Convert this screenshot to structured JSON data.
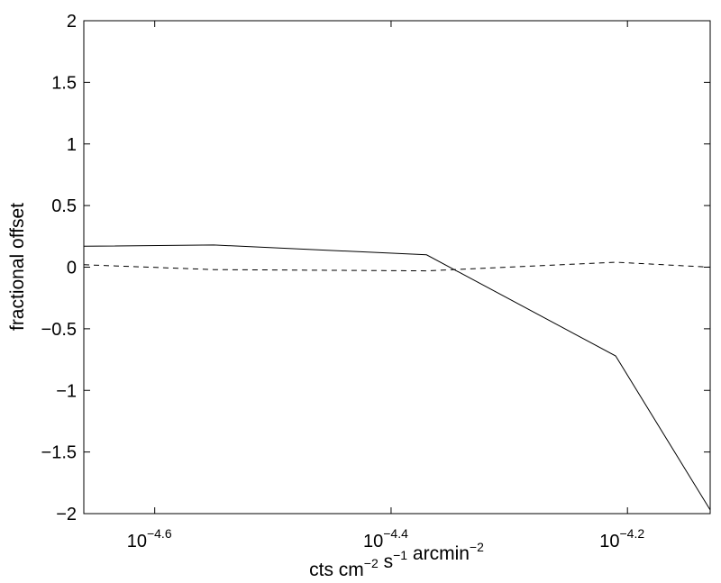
{
  "chart_data": {
    "type": "line",
    "title": "",
    "xlabel": {
      "parts": [
        {
          "text": "cts cm",
          "sup": "−2"
        },
        {
          "text": " s",
          "sup": "−1"
        },
        {
          "text": " arcmin",
          "sup": "−2"
        }
      ]
    },
    "ylabel": "fractional offset",
    "x_scale": "log10",
    "xlim_log10": [
      -4.66,
      -4.13
    ],
    "ylim": [
      -2,
      2
    ],
    "x_ticks": [
      {
        "log10": -4.6,
        "base": "10",
        "exp": "−4.6"
      },
      {
        "log10": -4.4,
        "base": "10",
        "exp": "−4.4"
      },
      {
        "log10": -4.2,
        "base": "10",
        "exp": "−4.2"
      }
    ],
    "y_ticks": [
      {
        "value": 2,
        "label": "2"
      },
      {
        "value": 1.5,
        "label": "1.5"
      },
      {
        "value": 1,
        "label": "1"
      },
      {
        "value": 0.5,
        "label": "0.5"
      },
      {
        "value": 0,
        "label": "0"
      },
      {
        "value": -0.5,
        "label": "−0.5"
      },
      {
        "value": -1,
        "label": "−1"
      },
      {
        "value": -1.5,
        "label": "−1.5"
      },
      {
        "value": -2,
        "label": "−2"
      }
    ],
    "grid": false,
    "series": [
      {
        "style": "solid",
        "color": "#000000",
        "points": [
          {
            "x_log10": -4.66,
            "y": 0.17
          },
          {
            "x_log10": -4.55,
            "y": 0.18
          },
          {
            "x_log10": -4.37,
            "y": 0.1
          },
          {
            "x_log10": -4.21,
            "y": -0.72
          },
          {
            "x_log10": -4.13,
            "y": -1.97
          }
        ]
      },
      {
        "style": "dashed",
        "color": "#000000",
        "points": [
          {
            "x_log10": -4.66,
            "y": 0.02
          },
          {
            "x_log10": -4.55,
            "y": -0.02
          },
          {
            "x_log10": -4.37,
            "y": -0.03
          },
          {
            "x_log10": -4.21,
            "y": 0.04
          },
          {
            "x_log10": -4.13,
            "y": 0.0
          }
        ]
      }
    ]
  }
}
